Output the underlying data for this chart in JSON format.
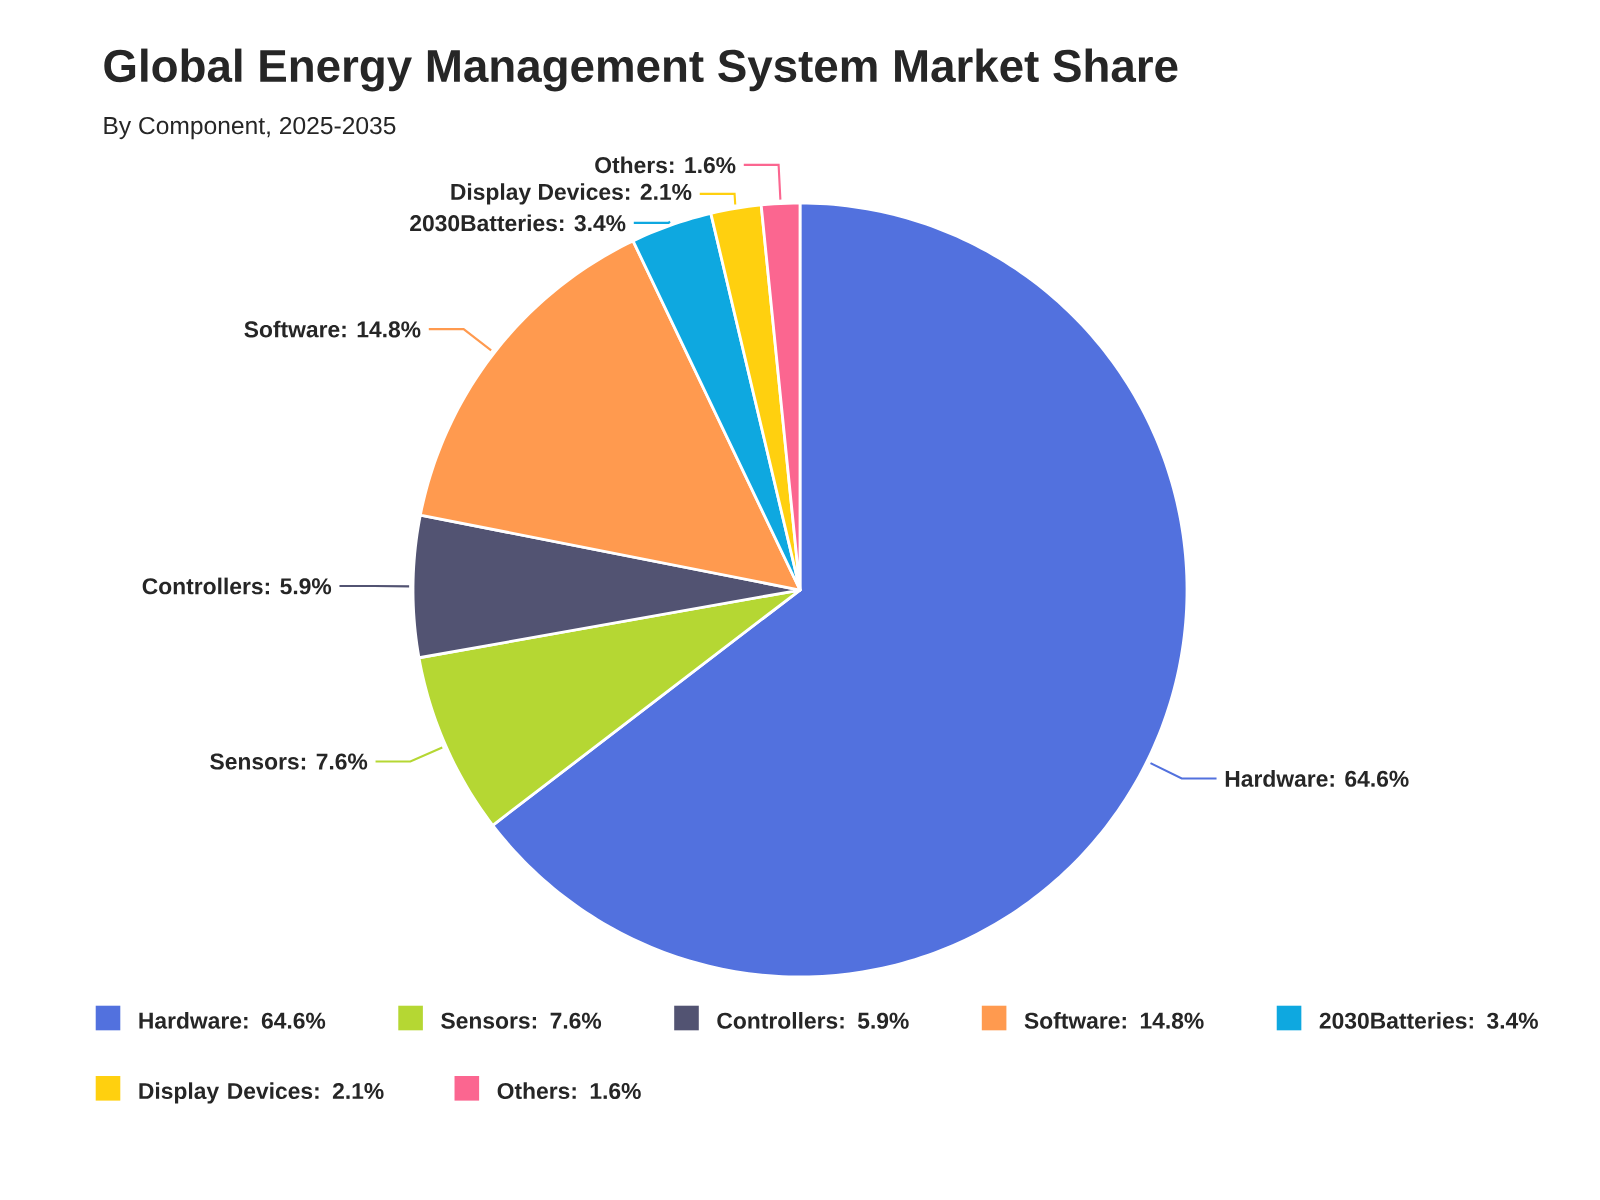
{
  "chart_data": {
    "type": "pie",
    "title": "Global Energy Management System Market Share",
    "subtitle": "By Component, 2025-2035",
    "categories": [
      "Hardware: 64.6%",
      "Sensors: 7.6%",
      "Controllers: 5.9%",
      "Software: 14.8%",
      "2030Batteries: 3.4%",
      "Display Devices: 2.1%",
      "Others: 1.6%"
    ],
    "values": [
      64.6,
      7.6,
      5.9,
      14.8,
      3.4,
      2.1,
      1.6
    ],
    "colors": [
      "#5271de",
      "#b5d733",
      "#525372",
      "#ff9a4f",
      "#0ea8e0",
      "#ffd00f",
      "#fb6690"
    ],
    "legend": "bottom"
  }
}
